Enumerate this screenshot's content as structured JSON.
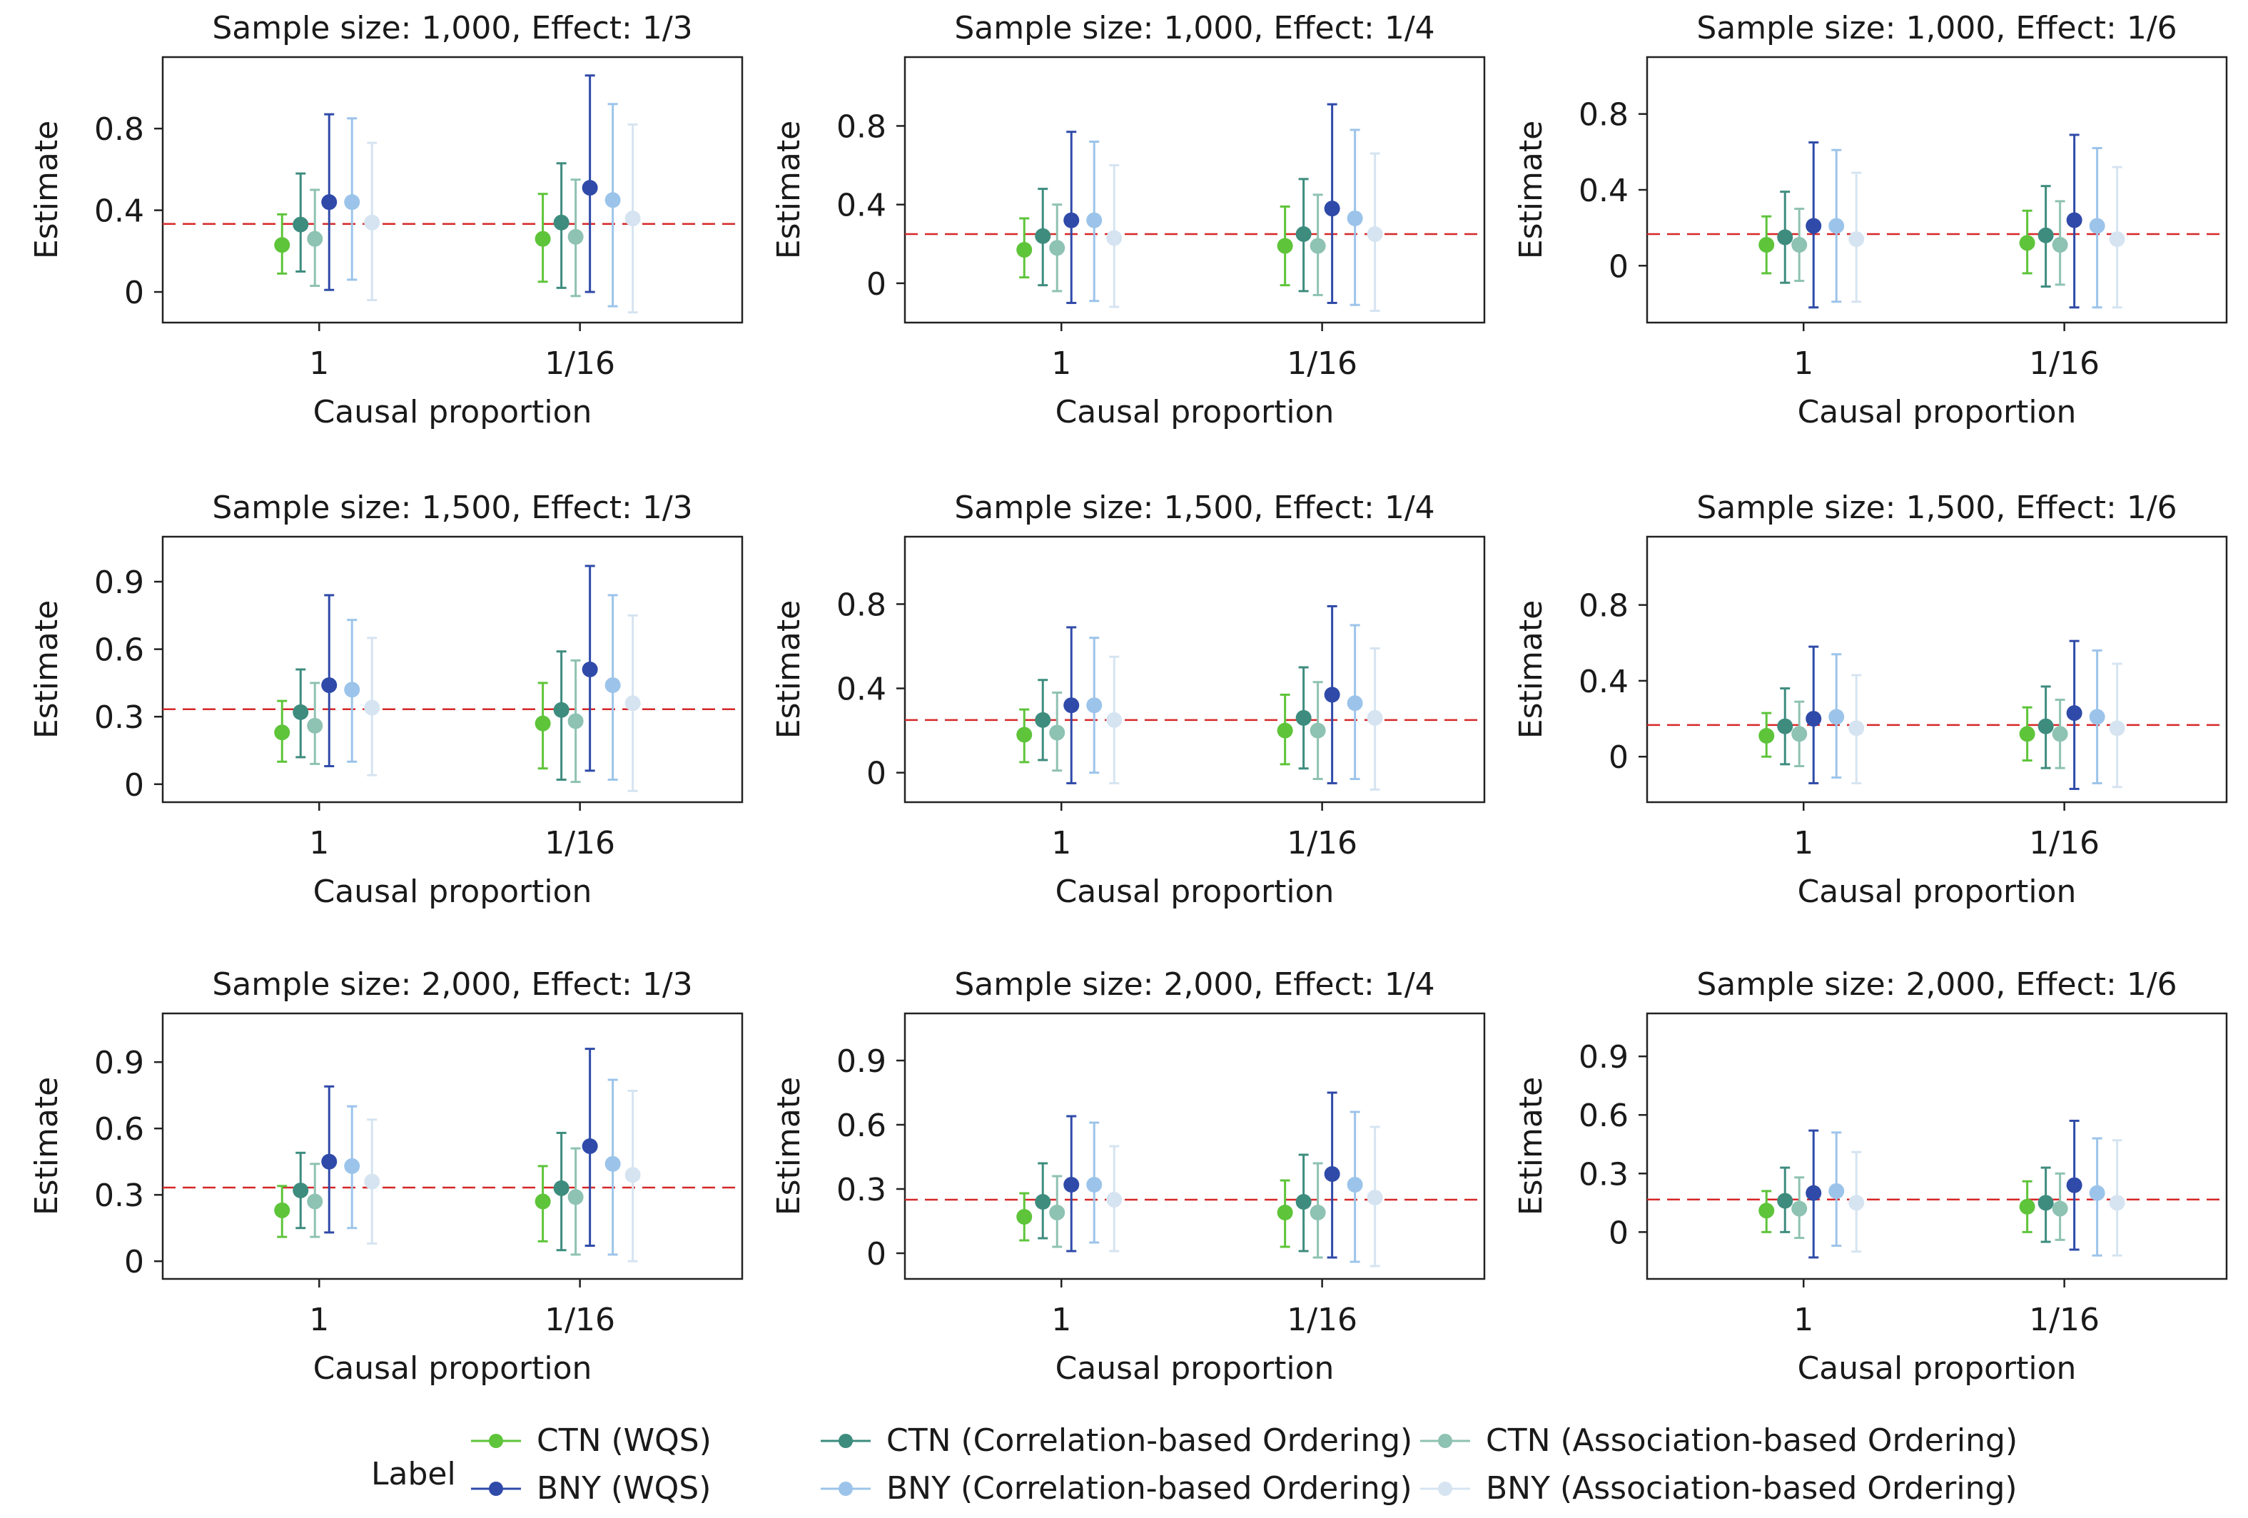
{
  "figure": {
    "legend": {
      "title": "Label",
      "entries": [
        {
          "name": "CTN (WQS)",
          "color": "#5ec43a"
        },
        {
          "name": "CTN (Correlation-based Ordering)",
          "color": "#3d8c7e"
        },
        {
          "name": "CTN (Association-based Ordering)",
          "color": "#8ec2b2"
        },
        {
          "name": "BNY (WQS)",
          "color": "#2f4aa8"
        },
        {
          "name": "BNY (Correlation-based Ordering)",
          "color": "#9cc4ea"
        },
        {
          "name": "BNY (Association-based Ordering)",
          "color": "#d6e4f1"
        }
      ]
    },
    "reference_line_color": "#d62728"
  },
  "chart_data": [
    {
      "type": "scatter",
      "title": "Sample size: 1,000, Effect: 1/3",
      "xlabel": "Causal proportion",
      "ylabel": "Estimate",
      "categories": [
        "1",
        "1/16"
      ],
      "ylim": [
        -0.15,
        1.15
      ],
      "yticks": [
        0,
        0.4,
        0.8
      ],
      "ytick_labels": [
        "0",
        "0.4",
        "0.8"
      ],
      "reference": 0.333,
      "series": [
        {
          "name": "CTN (WQS)",
          "estimates": [
            0.23,
            0.26
          ],
          "lower": [
            0.09,
            0.05
          ],
          "upper": [
            0.38,
            0.48
          ]
        },
        {
          "name": "CTN (Correlation-based Ordering)",
          "estimates": [
            0.33,
            0.34
          ],
          "lower": [
            0.1,
            0.02
          ],
          "upper": [
            0.58,
            0.63
          ]
        },
        {
          "name": "CTN (Association-based Ordering)",
          "estimates": [
            0.26,
            0.27
          ],
          "lower": [
            0.03,
            -0.02
          ],
          "upper": [
            0.5,
            0.55
          ]
        },
        {
          "name": "BNY (WQS)",
          "estimates": [
            0.44,
            0.51
          ],
          "lower": [
            0.01,
            0.0
          ],
          "upper": [
            0.87,
            1.06
          ]
        },
        {
          "name": "BNY (Correlation-based Ordering)",
          "estimates": [
            0.44,
            0.45
          ],
          "lower": [
            0.06,
            -0.07
          ],
          "upper": [
            0.85,
            0.92
          ]
        },
        {
          "name": "BNY (Association-based Ordering)",
          "estimates": [
            0.34,
            0.36
          ],
          "lower": [
            -0.04,
            -0.1
          ],
          "upper": [
            0.73,
            0.82
          ]
        }
      ]
    },
    {
      "type": "scatter",
      "title": "Sample size: 1,000, Effect: 1/4",
      "xlabel": "Causal proportion",
      "ylabel": "Estimate",
      "categories": [
        "1",
        "1/16"
      ],
      "ylim": [
        -0.2,
        1.15
      ],
      "yticks": [
        0,
        0.4,
        0.8
      ],
      "ytick_labels": [
        "0",
        "0.4",
        "0.8"
      ],
      "reference": 0.25,
      "series": [
        {
          "name": "CTN (WQS)",
          "estimates": [
            0.17,
            0.19
          ],
          "lower": [
            0.03,
            -0.01
          ],
          "upper": [
            0.33,
            0.39
          ]
        },
        {
          "name": "CTN (Correlation-based Ordering)",
          "estimates": [
            0.24,
            0.25
          ],
          "lower": [
            -0.01,
            -0.04
          ],
          "upper": [
            0.48,
            0.53
          ]
        },
        {
          "name": "CTN (Association-based Ordering)",
          "estimates": [
            0.18,
            0.19
          ],
          "lower": [
            -0.04,
            -0.06
          ],
          "upper": [
            0.4,
            0.45
          ]
        },
        {
          "name": "BNY (WQS)",
          "estimates": [
            0.32,
            0.38
          ],
          "lower": [
            -0.1,
            -0.1
          ],
          "upper": [
            0.77,
            0.91
          ]
        },
        {
          "name": "BNY (Correlation-based Ordering)",
          "estimates": [
            0.32,
            0.33
          ],
          "lower": [
            -0.09,
            -0.11
          ],
          "upper": [
            0.72,
            0.78
          ]
        },
        {
          "name": "BNY (Association-based Ordering)",
          "estimates": [
            0.23,
            0.25
          ],
          "lower": [
            -0.12,
            -0.14
          ],
          "upper": [
            0.6,
            0.66
          ]
        }
      ]
    },
    {
      "type": "scatter",
      "title": "Sample size: 1,000, Effect: 1/6",
      "xlabel": "Causal proportion",
      "ylabel": "Estimate",
      "categories": [
        "1",
        "1/16"
      ],
      "ylim": [
        -0.3,
        1.1
      ],
      "yticks": [
        0,
        0.4,
        0.8
      ],
      "ytick_labels": [
        "0",
        "0.4",
        "0.8"
      ],
      "reference": 0.1667,
      "series": [
        {
          "name": "CTN (WQS)",
          "estimates": [
            0.11,
            0.12
          ],
          "lower": [
            -0.04,
            -0.04
          ],
          "upper": [
            0.26,
            0.29
          ]
        },
        {
          "name": "CTN (Correlation-based Ordering)",
          "estimates": [
            0.15,
            0.16
          ],
          "lower": [
            -0.09,
            -0.11
          ],
          "upper": [
            0.39,
            0.42
          ]
        },
        {
          "name": "CTN (Association-based Ordering)",
          "estimates": [
            0.11,
            0.11
          ],
          "lower": [
            -0.08,
            -0.1
          ],
          "upper": [
            0.3,
            0.34
          ]
        },
        {
          "name": "BNY (WQS)",
          "estimates": [
            0.21,
            0.24
          ],
          "lower": [
            -0.22,
            -0.22
          ],
          "upper": [
            0.65,
            0.69
          ]
        },
        {
          "name": "BNY (Correlation-based Ordering)",
          "estimates": [
            0.21,
            0.21
          ],
          "lower": [
            -0.19,
            -0.22
          ],
          "upper": [
            0.61,
            0.62
          ]
        },
        {
          "name": "BNY (Association-based Ordering)",
          "estimates": [
            0.14,
            0.14
          ],
          "lower": [
            -0.19,
            -0.22
          ],
          "upper": [
            0.49,
            0.52
          ]
        }
      ]
    },
    {
      "type": "scatter",
      "title": "Sample size: 1,500, Effect: 1/3",
      "xlabel": "Causal proportion",
      "ylabel": "Estimate",
      "categories": [
        "1",
        "1/16"
      ],
      "ylim": [
        -0.08,
        1.1
      ],
      "yticks": [
        0,
        0.3,
        0.6,
        0.9
      ],
      "ytick_labels": [
        "0",
        "0.3",
        "0.6",
        "0.9"
      ],
      "reference": 0.333,
      "series": [
        {
          "name": "CTN (WQS)",
          "estimates": [
            0.23,
            0.27
          ],
          "lower": [
            0.1,
            0.07
          ],
          "upper": [
            0.37,
            0.45
          ]
        },
        {
          "name": "CTN (Correlation-based Ordering)",
          "estimates": [
            0.32,
            0.33
          ],
          "lower": [
            0.12,
            0.02
          ],
          "upper": [
            0.51,
            0.59
          ]
        },
        {
          "name": "CTN (Association-based Ordering)",
          "estimates": [
            0.26,
            0.28
          ],
          "lower": [
            0.09,
            0.01
          ],
          "upper": [
            0.45,
            0.55
          ]
        },
        {
          "name": "BNY (WQS)",
          "estimates": [
            0.44,
            0.51
          ],
          "lower": [
            0.08,
            0.06
          ],
          "upper": [
            0.84,
            0.97
          ]
        },
        {
          "name": "BNY (Correlation-based Ordering)",
          "estimates": [
            0.42,
            0.44
          ],
          "lower": [
            0.1,
            0.02
          ],
          "upper": [
            0.73,
            0.84
          ]
        },
        {
          "name": "BNY (Association-based Ordering)",
          "estimates": [
            0.34,
            0.36
          ],
          "lower": [
            0.04,
            -0.03
          ],
          "upper": [
            0.65,
            0.75
          ]
        }
      ]
    },
    {
      "type": "scatter",
      "title": "Sample size: 1,500, Effect: 1/4",
      "xlabel": "Causal proportion",
      "ylabel": "Estimate",
      "categories": [
        "1",
        "1/16"
      ],
      "ylim": [
        -0.14,
        1.12
      ],
      "yticks": [
        0,
        0.4,
        0.8
      ],
      "ytick_labels": [
        "0",
        "0.4",
        "0.8"
      ],
      "reference": 0.25,
      "series": [
        {
          "name": "CTN (WQS)",
          "estimates": [
            0.18,
            0.2
          ],
          "lower": [
            0.05,
            0.04
          ],
          "upper": [
            0.3,
            0.37
          ]
        },
        {
          "name": "CTN (Correlation-based Ordering)",
          "estimates": [
            0.25,
            0.26
          ],
          "lower": [
            0.06,
            0.02
          ],
          "upper": [
            0.44,
            0.5
          ]
        },
        {
          "name": "CTN (Association-based Ordering)",
          "estimates": [
            0.19,
            0.2
          ],
          "lower": [
            0.01,
            -0.03
          ],
          "upper": [
            0.38,
            0.43
          ]
        },
        {
          "name": "BNY (WQS)",
          "estimates": [
            0.32,
            0.37
          ],
          "lower": [
            -0.05,
            -0.05
          ],
          "upper": [
            0.69,
            0.79
          ]
        },
        {
          "name": "BNY (Correlation-based Ordering)",
          "estimates": [
            0.32,
            0.33
          ],
          "lower": [
            0.0,
            -0.03
          ],
          "upper": [
            0.64,
            0.7
          ]
        },
        {
          "name": "BNY (Association-based Ordering)",
          "estimates": [
            0.25,
            0.26
          ],
          "lower": [
            -0.05,
            -0.08
          ],
          "upper": [
            0.55,
            0.59
          ]
        }
      ]
    },
    {
      "type": "scatter",
      "title": "Sample size: 1,500, Effect: 1/6",
      "xlabel": "Causal proportion",
      "ylabel": "Estimate",
      "categories": [
        "1",
        "1/16"
      ],
      "ylim": [
        -0.24,
        1.16
      ],
      "yticks": [
        0,
        0.4,
        0.8
      ],
      "ytick_labels": [
        "0",
        "0.4",
        "0.8"
      ],
      "reference": 0.1667,
      "series": [
        {
          "name": "CTN (WQS)",
          "estimates": [
            0.11,
            0.12
          ],
          "lower": [
            0.0,
            -0.02
          ],
          "upper": [
            0.23,
            0.26
          ]
        },
        {
          "name": "CTN (Correlation-based Ordering)",
          "estimates": [
            0.16,
            0.16
          ],
          "lower": [
            -0.04,
            -0.06
          ],
          "upper": [
            0.36,
            0.37
          ]
        },
        {
          "name": "CTN (Association-based Ordering)",
          "estimates": [
            0.12,
            0.12
          ],
          "lower": [
            -0.05,
            -0.06
          ],
          "upper": [
            0.29,
            0.3
          ]
        },
        {
          "name": "BNY (WQS)",
          "estimates": [
            0.2,
            0.23
          ],
          "lower": [
            -0.14,
            -0.17
          ],
          "upper": [
            0.58,
            0.61
          ]
        },
        {
          "name": "BNY (Correlation-based Ordering)",
          "estimates": [
            0.21,
            0.21
          ],
          "lower": [
            -0.11,
            -0.14
          ],
          "upper": [
            0.54,
            0.56
          ]
        },
        {
          "name": "BNY (Association-based Ordering)",
          "estimates": [
            0.15,
            0.15
          ],
          "lower": [
            -0.14,
            -0.16
          ],
          "upper": [
            0.43,
            0.49
          ]
        }
      ]
    },
    {
      "type": "scatter",
      "title": "Sample size: 2,000, Effect: 1/3",
      "xlabel": "Causal proportion",
      "ylabel": "Estimate",
      "categories": [
        "1",
        "1/16"
      ],
      "ylim": [
        -0.08,
        1.12
      ],
      "yticks": [
        0,
        0.3,
        0.6,
        0.9
      ],
      "ytick_labels": [
        "0",
        "0.3",
        "0.6",
        "0.9"
      ],
      "reference": 0.333,
      "series": [
        {
          "name": "CTN (WQS)",
          "estimates": [
            0.23,
            0.27
          ],
          "lower": [
            0.11,
            0.09
          ],
          "upper": [
            0.34,
            0.43
          ]
        },
        {
          "name": "CTN (Correlation-based Ordering)",
          "estimates": [
            0.32,
            0.33
          ],
          "lower": [
            0.15,
            0.05
          ],
          "upper": [
            0.49,
            0.58
          ]
        },
        {
          "name": "CTN (Association-based Ordering)",
          "estimates": [
            0.27,
            0.29
          ],
          "lower": [
            0.11,
            0.03
          ],
          "upper": [
            0.44,
            0.51
          ]
        },
        {
          "name": "BNY (WQS)",
          "estimates": [
            0.45,
            0.52
          ],
          "lower": [
            0.13,
            0.07
          ],
          "upper": [
            0.79,
            0.96
          ]
        },
        {
          "name": "BNY (Correlation-based Ordering)",
          "estimates": [
            0.43,
            0.44
          ],
          "lower": [
            0.15,
            0.03
          ],
          "upper": [
            0.7,
            0.82
          ]
        },
        {
          "name": "BNY (Association-based Ordering)",
          "estimates": [
            0.36,
            0.39
          ],
          "lower": [
            0.08,
            0.0
          ],
          "upper": [
            0.64,
            0.77
          ]
        }
      ]
    },
    {
      "type": "scatter",
      "title": "Sample size: 2,000, Effect: 1/4",
      "xlabel": "Causal proportion",
      "ylabel": "Estimate",
      "categories": [
        "1",
        "1/16"
      ],
      "ylim": [
        -0.12,
        1.12
      ],
      "yticks": [
        0,
        0.3,
        0.6,
        0.9
      ],
      "ytick_labels": [
        "0",
        "0.3",
        "0.6",
        "0.9"
      ],
      "reference": 0.25,
      "series": [
        {
          "name": "CTN (WQS)",
          "estimates": [
            0.17,
            0.19
          ],
          "lower": [
            0.06,
            0.03
          ],
          "upper": [
            0.28,
            0.34
          ]
        },
        {
          "name": "CTN (Correlation-based Ordering)",
          "estimates": [
            0.24,
            0.24
          ],
          "lower": [
            0.07,
            0.01
          ],
          "upper": [
            0.42,
            0.46
          ]
        },
        {
          "name": "CTN (Association-based Ordering)",
          "estimates": [
            0.19,
            0.19
          ],
          "lower": [
            0.03,
            -0.02
          ],
          "upper": [
            0.36,
            0.42
          ]
        },
        {
          "name": "BNY (WQS)",
          "estimates": [
            0.32,
            0.37
          ],
          "lower": [
            0.01,
            -0.02
          ],
          "upper": [
            0.64,
            0.75
          ]
        },
        {
          "name": "BNY (Correlation-based Ordering)",
          "estimates": [
            0.32,
            0.32
          ],
          "lower": [
            0.05,
            -0.04
          ],
          "upper": [
            0.61,
            0.66
          ]
        },
        {
          "name": "BNY (Association-based Ordering)",
          "estimates": [
            0.25,
            0.26
          ],
          "lower": [
            0.01,
            -0.06
          ],
          "upper": [
            0.5,
            0.59
          ]
        }
      ]
    },
    {
      "type": "scatter",
      "title": "Sample size: 2,000, Effect: 1/6",
      "xlabel": "Causal proportion",
      "ylabel": "Estimate",
      "categories": [
        "1",
        "1/16"
      ],
      "ylim": [
        -0.24,
        1.12
      ],
      "yticks": [
        0,
        0.3,
        0.6,
        0.9
      ],
      "ytick_labels": [
        "0",
        "0.3",
        "0.6",
        "0.9"
      ],
      "reference": 0.1667,
      "series": [
        {
          "name": "CTN (WQS)",
          "estimates": [
            0.11,
            0.13
          ],
          "lower": [
            0.0,
            0.0
          ],
          "upper": [
            0.21,
            0.26
          ]
        },
        {
          "name": "CTN (Correlation-based Ordering)",
          "estimates": [
            0.16,
            0.15
          ],
          "lower": [
            0.0,
            -0.05
          ],
          "upper": [
            0.33,
            0.33
          ]
        },
        {
          "name": "CTN (Association-based Ordering)",
          "estimates": [
            0.12,
            0.12
          ],
          "lower": [
            -0.03,
            -0.04
          ],
          "upper": [
            0.28,
            0.3
          ]
        },
        {
          "name": "BNY (WQS)",
          "estimates": [
            0.2,
            0.24
          ],
          "lower": [
            -0.13,
            -0.09
          ],
          "upper": [
            0.52,
            0.57
          ]
        },
        {
          "name": "BNY (Correlation-based Ordering)",
          "estimates": [
            0.21,
            0.2
          ],
          "lower": [
            -0.07,
            -0.12
          ],
          "upper": [
            0.51,
            0.48
          ]
        },
        {
          "name": "BNY (Association-based Ordering)",
          "estimates": [
            0.15,
            0.15
          ],
          "lower": [
            -0.1,
            -0.12
          ],
          "upper": [
            0.41,
            0.47
          ]
        }
      ]
    }
  ]
}
